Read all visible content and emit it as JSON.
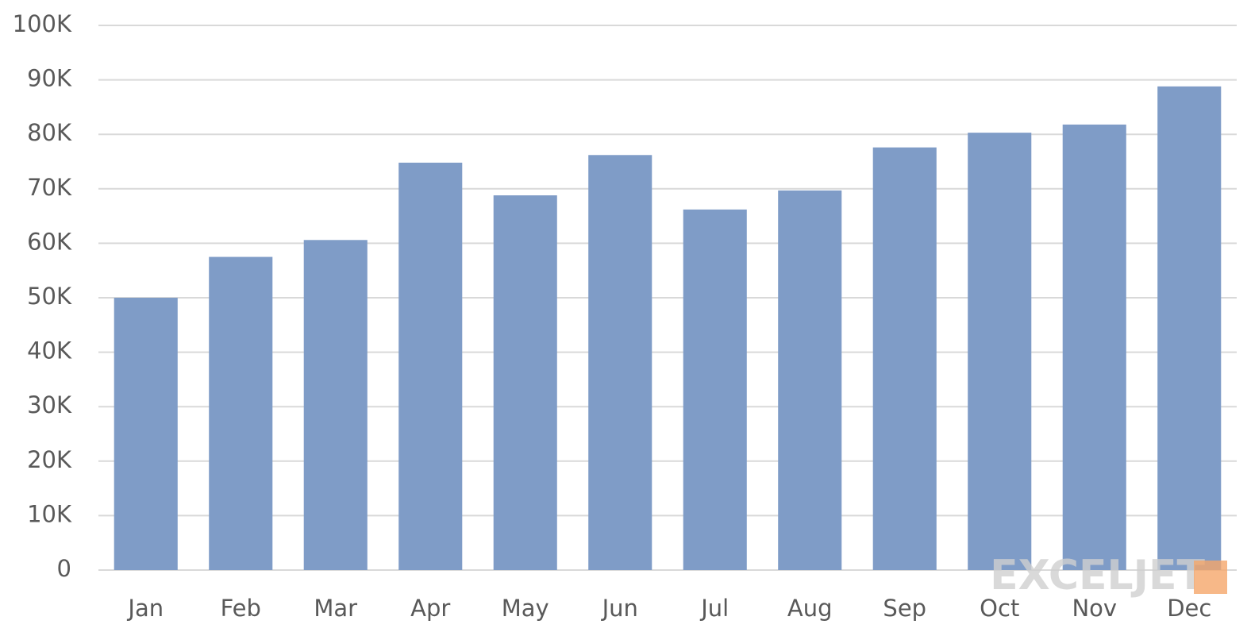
{
  "chart_data": {
    "type": "bar",
    "categories": [
      "Jan",
      "Feb",
      "Mar",
      "Apr",
      "May",
      "Jun",
      "Jul",
      "Aug",
      "Sep",
      "Oct",
      "Nov",
      "Dec"
    ],
    "values": [
      50000,
      57500,
      60600,
      74800,
      68800,
      76200,
      66200,
      69700,
      77600,
      80300,
      81800,
      88800
    ],
    "color": "#7f9cc7",
    "ylim": [
      0,
      100000
    ],
    "yticks": [
      0,
      {
        "value": 10000,
        "label": "10K"
      },
      {
        "value": 20000,
        "label": "20K"
      },
      {
        "value": 30000,
        "label": "30K"
      },
      {
        "value": 40000,
        "label": "40K"
      },
      {
        "value": 50000,
        "label": "50K"
      },
      {
        "value": 60000,
        "label": "60K"
      },
      {
        "value": 70000,
        "label": "70K"
      },
      {
        "value": 80000,
        "label": "80K"
      },
      {
        "value": 90000,
        "label": "90K"
      },
      {
        "value": 100000,
        "label": "100K"
      }
    ],
    "grid": true,
    "watermark": "EXCELJET"
  }
}
